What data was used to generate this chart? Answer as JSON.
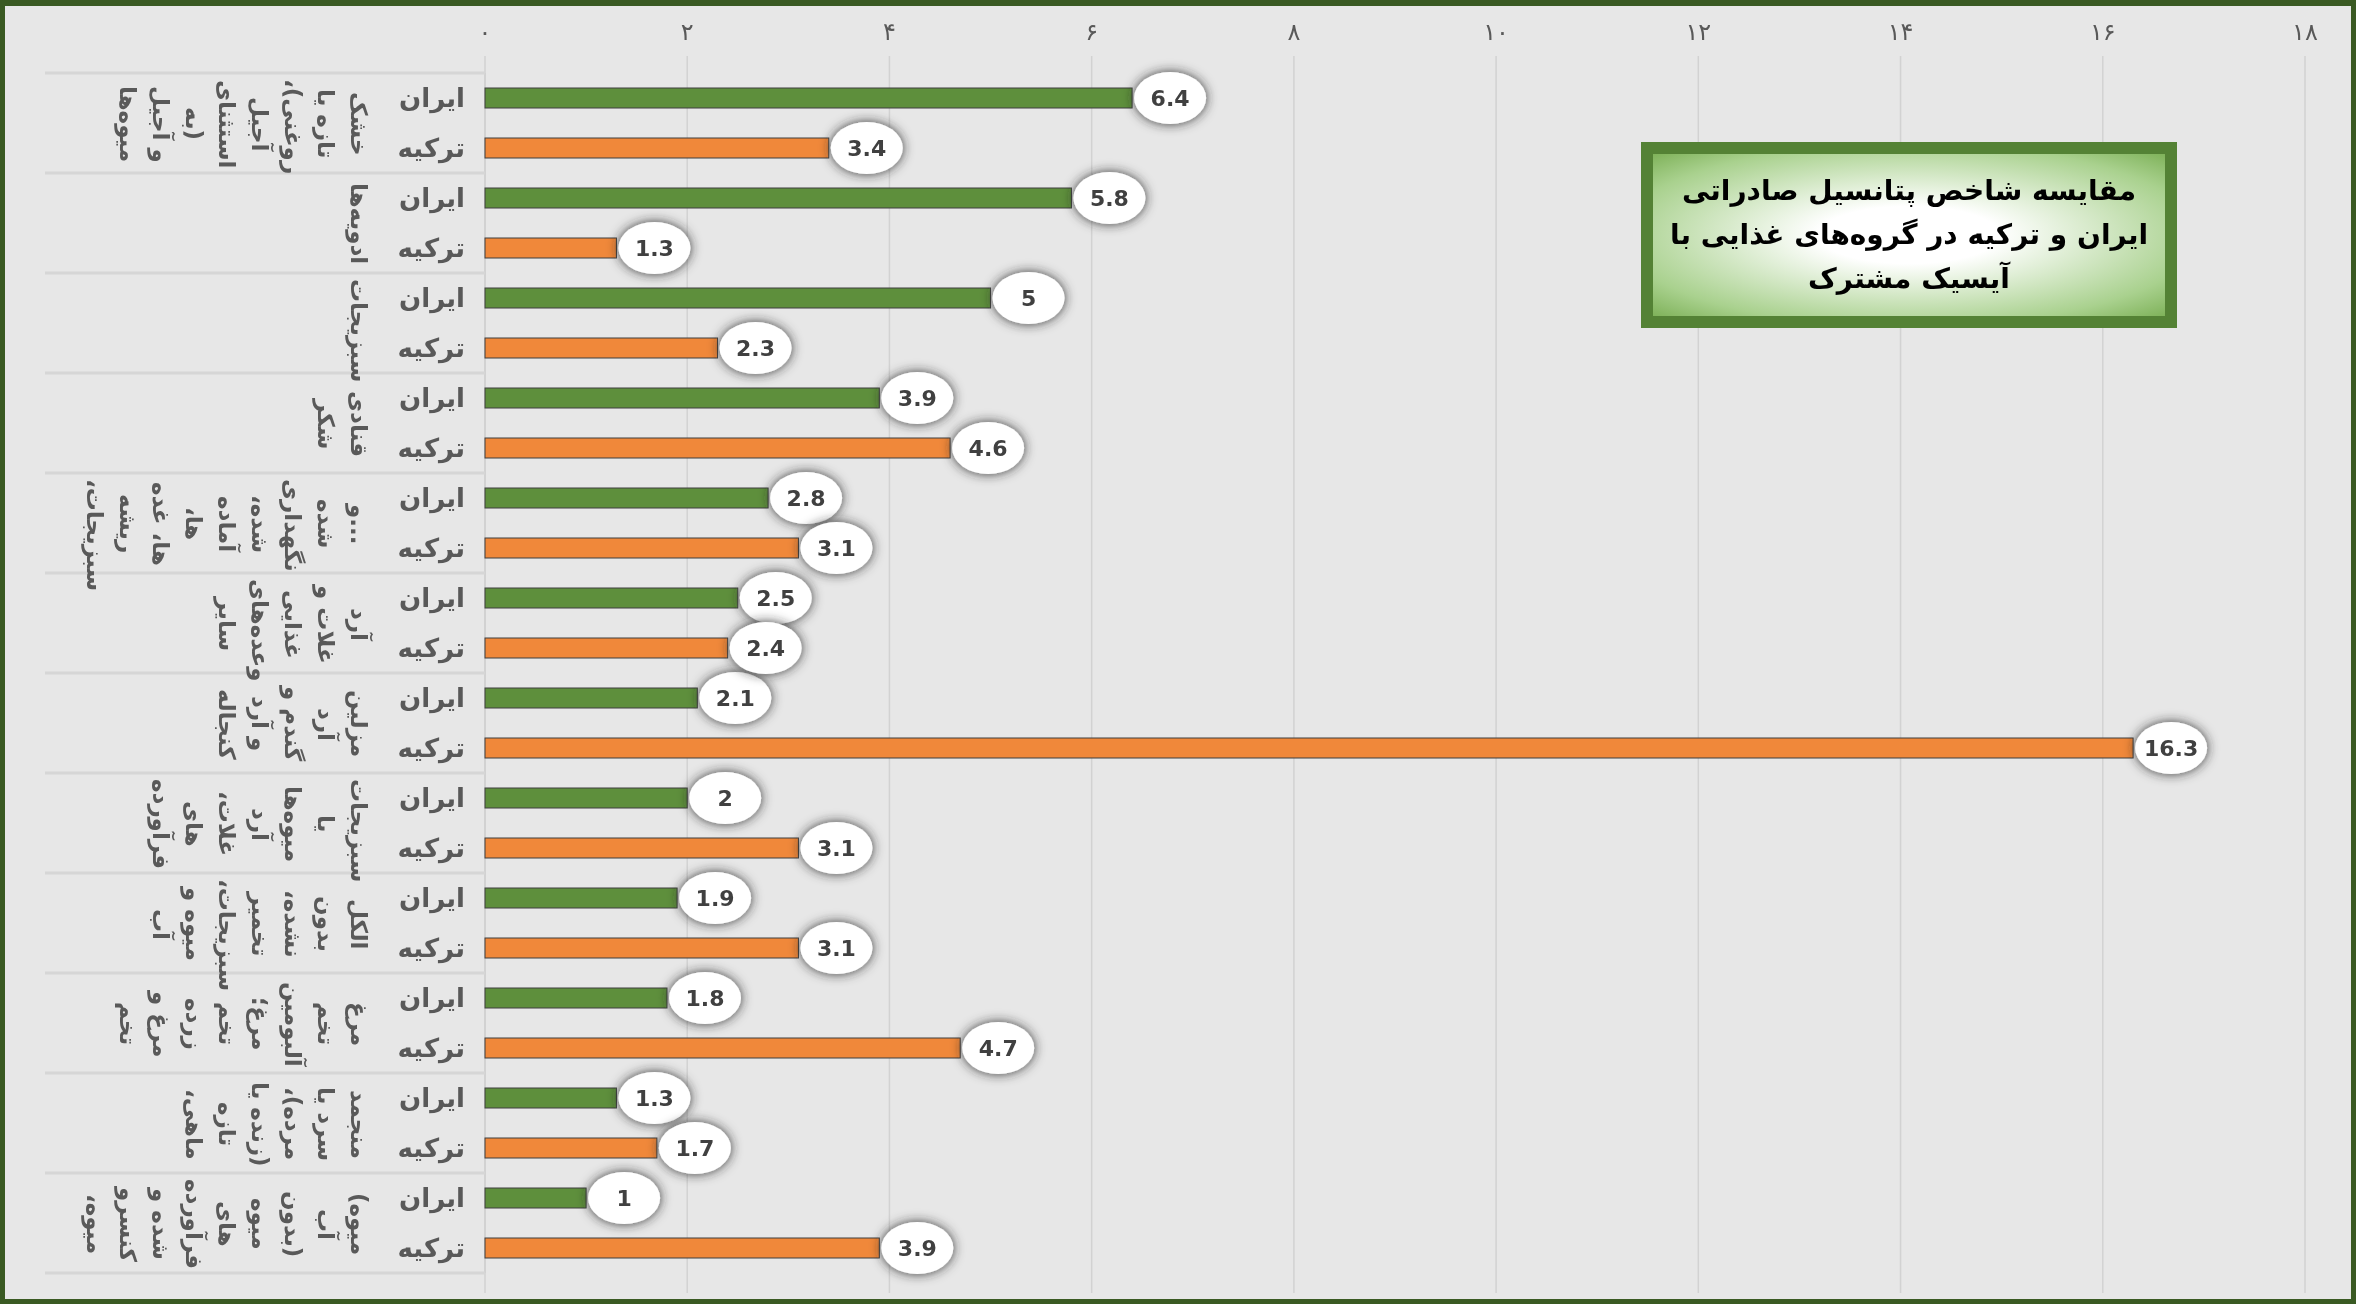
{
  "chart_data": {
    "type": "bar",
    "orientation": "horizontal",
    "title": "مقایسه شاخص پتانسیل صادراتی ایران و ترکیه در گروه‌های غذایی با آیسیک مشترک",
    "categories": [
      "میوه‌ها و آجیل (به استثنای آجیل روغنی)، تازه یا خشک",
      "ادویه‌ها",
      "سبزیجات",
      "شکر قنادی",
      "سبزیجات، ریشه ها، غده ها، آماده شده، نگهداری شده و...",
      "سایر وعده‌های غذایی غلات و آرد",
      "کنجاله و آرد گندم و آرد مزلین",
      "فرآورده های غلات، آرد میوه‌ها یا سبزیجات",
      "آب میوه و سبزیجات، تخمیر نشده، بدون الکل",
      "تخم مرغ و زرده تخم مرغ؛ آلبومین تخم مرغ",
      "ماهی، تازه (زنده یا مرده)، سرد یا منجمد",
      "میوه، کنسرو شده و فرآورده های میوه (بدون آب میوه)"
    ],
    "series": [
      {
        "name": "ایران",
        "color": "#5e8f3c",
        "values": [
          6.4,
          5.8,
          5,
          3.9,
          2.8,
          2.5,
          2.1,
          2,
          1.9,
          1.8,
          1.3,
          1
        ]
      },
      {
        "name": "ترکیه",
        "color": "#f0883a",
        "values": [
          3.4,
          1.3,
          2.3,
          4.6,
          3.1,
          2.4,
          16.3,
          3.1,
          3.1,
          4.7,
          1.7,
          3.9
        ]
      }
    ],
    "xlim": [
      0,
      18
    ],
    "xticks": [
      {
        "value": 0,
        "label": "۰"
      },
      {
        "value": 2,
        "label": "۲"
      },
      {
        "value": 4,
        "label": "۴"
      },
      {
        "value": 6,
        "label": "۶"
      },
      {
        "value": 8,
        "label": "۸"
      },
      {
        "value": 10,
        "label": "۱۰"
      },
      {
        "value": 12,
        "label": "۱۲"
      },
      {
        "value": 14,
        "label": "۱۴"
      },
      {
        "value": 16,
        "label": "۱۶"
      },
      {
        "value": 18,
        "label": "۱۸"
      }
    ],
    "grid": "x",
    "data_labels": true
  }
}
